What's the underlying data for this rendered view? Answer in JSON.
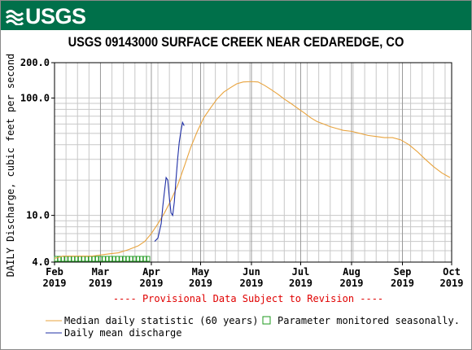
{
  "header": {
    "logo_text": "USGS",
    "brand_color": "#00704a"
  },
  "chart_data": {
    "type": "line",
    "title": "USGS 09143000 SURFACE CREEK NEAR CEDAREDGE, CO",
    "ylabel": "DAILY Discharge, cubic feet per second",
    "xlabel": "",
    "y_scale": "log",
    "ylim": [
      4.0,
      200.0
    ],
    "y_ticks": [
      {
        "value": 4.0,
        "label": "4.0"
      },
      {
        "value": 10.0,
        "label": "10.0"
      },
      {
        "value": 100.0,
        "label": "100.0"
      },
      {
        "value": 200.0,
        "label": "200.0"
      }
    ],
    "x_ticks": [
      {
        "month": "Feb",
        "year": "2019"
      },
      {
        "month": "Mar",
        "year": "2019"
      },
      {
        "month": "Apr",
        "year": "2019"
      },
      {
        "month": "May",
        "year": "2019"
      },
      {
        "month": "Jun",
        "year": "2019"
      },
      {
        "month": "Jul",
        "year": "2019"
      },
      {
        "month": "Aug",
        "year": "2019"
      },
      {
        "month": "Sep",
        "year": "2019"
      },
      {
        "month": "Oct",
        "year": "2019"
      }
    ],
    "grid": true,
    "provisional_note": "---- Provisional Data Subject to Revision ----",
    "series": [
      {
        "name": "Median daily statistic (60 years)",
        "color": "#e8a33d",
        "points": [
          [
            "2019-02-01",
            4.3
          ],
          [
            "2019-02-06",
            4.5
          ],
          [
            "2019-02-12",
            4.5
          ],
          [
            "2019-02-18",
            4.5
          ],
          [
            "2019-02-24",
            4.5
          ],
          [
            "2019-03-01",
            4.6
          ],
          [
            "2019-03-06",
            4.7
          ],
          [
            "2019-03-12",
            4.8
          ],
          [
            "2019-03-18",
            5.1
          ],
          [
            "2019-03-24",
            5.5
          ],
          [
            "2019-03-28",
            6.0
          ],
          [
            "2019-04-01",
            7.0
          ],
          [
            "2019-04-05",
            8.5
          ],
          [
            "2019-04-09",
            10.5
          ],
          [
            "2019-04-13",
            13.5
          ],
          [
            "2019-04-17",
            18.0
          ],
          [
            "2019-04-21",
            26.0
          ],
          [
            "2019-04-25",
            38.0
          ],
          [
            "2019-04-29",
            52.0
          ],
          [
            "2019-05-03",
            68.0
          ],
          [
            "2019-05-07",
            82.0
          ],
          [
            "2019-05-11",
            98.0
          ],
          [
            "2019-05-15",
            112.0
          ],
          [
            "2019-05-19",
            122.0
          ],
          [
            "2019-05-23",
            132.0
          ],
          [
            "2019-05-27",
            137.0
          ],
          [
            "2019-06-01",
            138.0
          ],
          [
            "2019-06-05",
            137.0
          ],
          [
            "2019-06-09",
            128.0
          ],
          [
            "2019-06-13",
            118.0
          ],
          [
            "2019-06-17",
            108.0
          ],
          [
            "2019-06-21",
            98.0
          ],
          [
            "2019-06-25",
            90.0
          ],
          [
            "2019-06-29",
            82.0
          ],
          [
            "2019-07-03",
            75.0
          ],
          [
            "2019-07-07",
            68.0
          ],
          [
            "2019-07-11",
            63.0
          ],
          [
            "2019-07-15",
            60.0
          ],
          [
            "2019-07-19",
            57.0
          ],
          [
            "2019-07-23",
            55.0
          ],
          [
            "2019-07-27",
            53.0
          ],
          [
            "2019-08-01",
            52.0
          ],
          [
            "2019-08-06",
            50.0
          ],
          [
            "2019-08-11",
            48.0
          ],
          [
            "2019-08-16",
            47.0
          ],
          [
            "2019-08-21",
            46.0
          ],
          [
            "2019-08-26",
            46.0
          ],
          [
            "2019-08-31",
            44.0
          ],
          [
            "2019-09-05",
            40.0
          ],
          [
            "2019-09-10",
            35.0
          ],
          [
            "2019-09-15",
            30.0
          ],
          [
            "2019-09-20",
            26.0
          ],
          [
            "2019-09-25",
            23.0
          ],
          [
            "2019-09-30",
            21.0
          ]
        ]
      },
      {
        "name": "Daily mean discharge",
        "color": "#1f2fa6",
        "points": [
          [
            "2019-04-03",
            6.0
          ],
          [
            "2019-04-05",
            6.4
          ],
          [
            "2019-04-07",
            8.5
          ],
          [
            "2019-04-08",
            12.0
          ],
          [
            "2019-04-09",
            16.0
          ],
          [
            "2019-04-10",
            21.0
          ],
          [
            "2019-04-11",
            20.0
          ],
          [
            "2019-04-12",
            14.0
          ],
          [
            "2019-04-13",
            10.5
          ],
          [
            "2019-04-14",
            10.0
          ],
          [
            "2019-04-15",
            13.0
          ],
          [
            "2019-04-16",
            20.0
          ],
          [
            "2019-04-17",
            30.0
          ],
          [
            "2019-04-18",
            42.0
          ],
          [
            "2019-04-19",
            52.0
          ],
          [
            "2019-04-20",
            62.0
          ],
          [
            "2019-04-21",
            58.0
          ]
        ]
      }
    ],
    "seasonal_marker": {
      "label": "Parameter monitored seasonally.",
      "color": "#1e9a1e",
      "start": "2019-02-01",
      "end": "2019-04-01"
    },
    "legend": {
      "position": "bottom",
      "median_label": "Median daily statistic (60 years)",
      "mean_label": "Daily mean discharge",
      "seasonal_label": "Parameter monitored seasonally."
    }
  }
}
